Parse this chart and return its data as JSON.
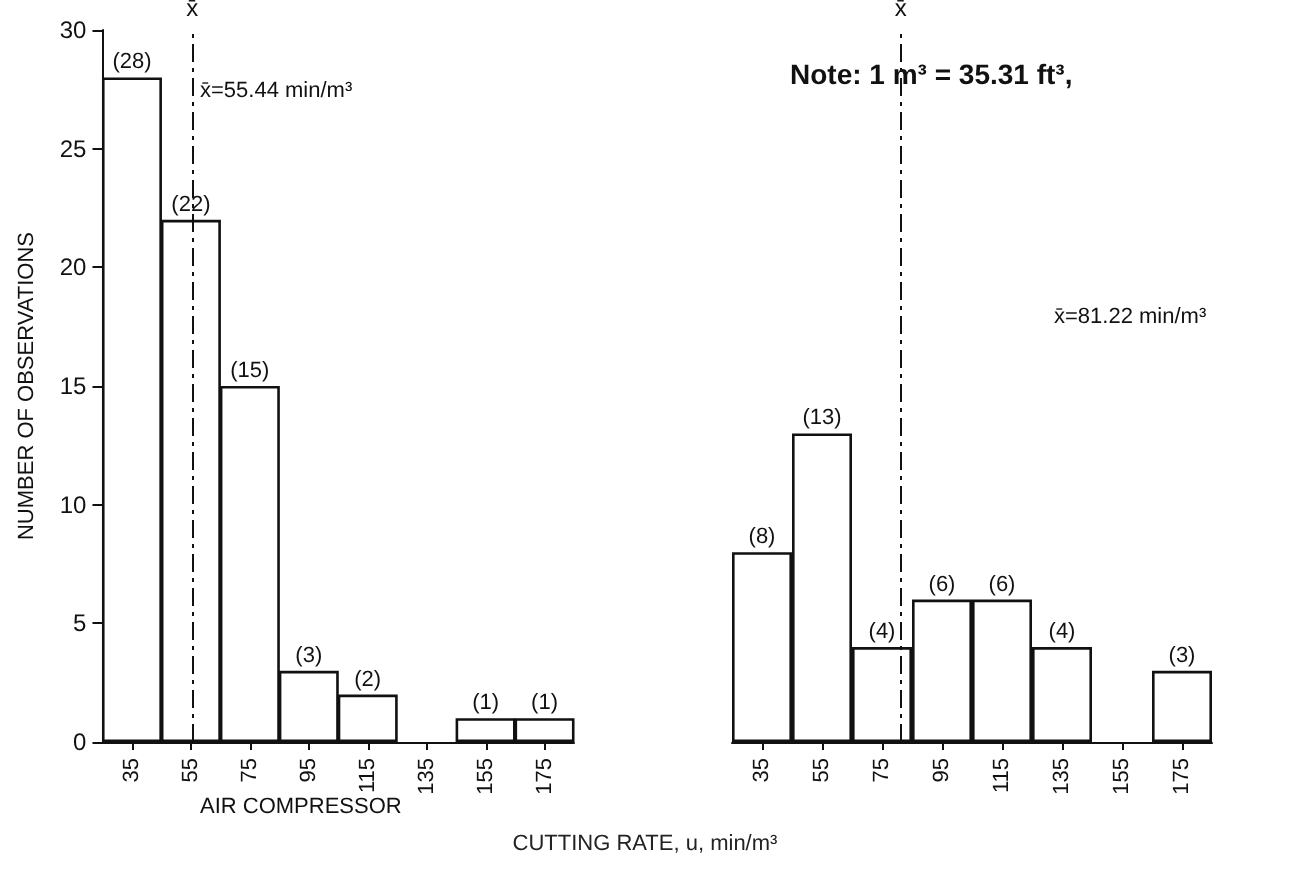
{
  "chart_data": [
    {
      "type": "histogram",
      "ylabel": "NUMBER OF OBSERVATIONS",
      "xlabel": "CUTTING RATE, u, min/m³",
      "bins": [
        25,
        45,
        65,
        85,
        105,
        125,
        145,
        165,
        185
      ],
      "values": [
        28,
        22,
        15,
        3,
        2,
        0,
        1,
        1
      ],
      "value_labels": [
        "(28)",
        "(22)",
        "(15)",
        "(3)",
        "(2)",
        null,
        "(1)",
        "(1)"
      ],
      "color": "#ffffff",
      "xlim": [
        25,
        185
      ],
      "xticks": [
        35,
        55,
        75,
        95,
        115,
        135,
        155,
        175
      ],
      "ylim": [
        0,
        30
      ],
      "yticks": [
        0,
        5,
        10,
        15,
        20,
        25,
        30
      ],
      "ref_lines": [
        {
          "axis": "x",
          "value": 55.44,
          "label": "x̄",
          "line_style": "dashed"
        }
      ],
      "annotations": [
        "x̄=55.44 min/m³",
        "AIR COMPRESSOR"
      ]
    },
    {
      "type": "histogram",
      "bins": [
        25,
        45,
        65,
        85,
        105,
        125,
        145,
        165,
        185
      ],
      "values": [
        8,
        13,
        4,
        6,
        6,
        4,
        0,
        3
      ],
      "value_labels": [
        "(8)",
        "(13)",
        "(4)",
        "(6)",
        "(6)",
        "(4)",
        null,
        "(3)"
      ],
      "color": "#ffffff",
      "xlim": [
        25,
        185
      ],
      "xticks": [
        35,
        55,
        75,
        95,
        115,
        135,
        155,
        175
      ],
      "ylim": [
        0,
        30
      ],
      "yticks": [
        0,
        5,
        10,
        15,
        20,
        25,
        30
      ],
      "tick_labels": "x",
      "ref_lines": [
        {
          "axis": "x",
          "value": 81.22,
          "label": "x̄",
          "line_style": "dashed"
        }
      ],
      "annotations": [
        "Note: 1 m³ = 35.31 ft³,",
        "x̄=81.22 min/m³"
      ]
    }
  ]
}
